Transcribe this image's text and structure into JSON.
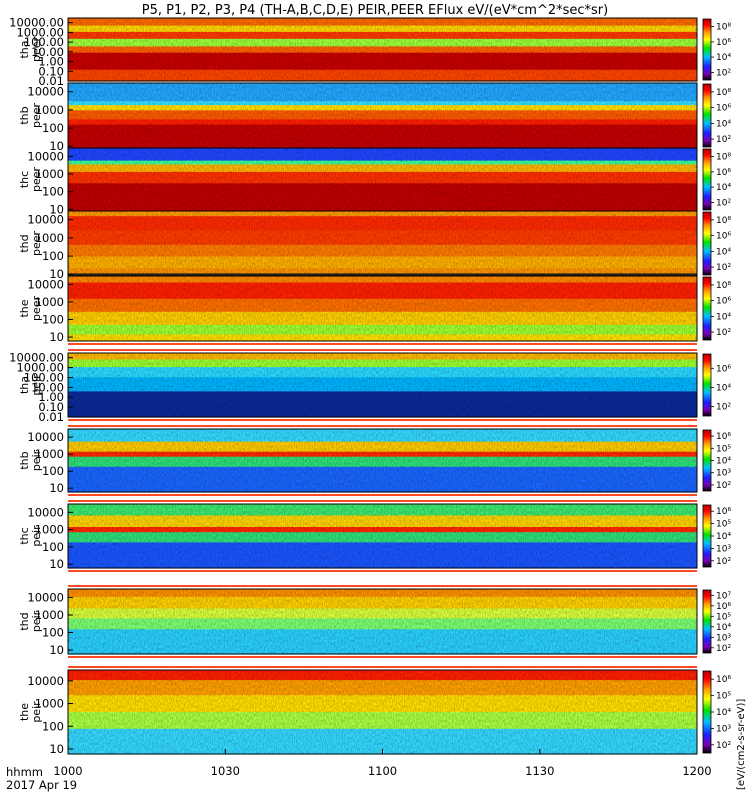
{
  "chart_data": {
    "type": "heatmap",
    "title": "P5, P1, P2, P3, P4 (TH-A,B,C,D,E) PEIR,PEER EFlux eV/(eV*cm^2*sec*sr)",
    "x_axis": {
      "range": [
        "10:00",
        "12:00"
      ],
      "ticks": [
        "1000",
        "1030",
        "1100",
        "1130",
        "1200"
      ],
      "label_line1": "hhmm",
      "label_line2": "2017 Apr 19"
    },
    "colorbar_label": "[eV/(cm2-s-sr-eV)]",
    "colormap": [
      "#000000",
      "#7a00b0",
      "#1f1fff",
      "#00bfff",
      "#00e000",
      "#ffff00",
      "#ff9900",
      "#ff0000",
      "#b00000"
    ],
    "panels": [
      {
        "probe": "tha",
        "species": "peer",
        "yticks": [
          "10000.00",
          "1000.00",
          "100.00",
          "10.00",
          "1.00",
          "0.10",
          "0.01"
        ],
        "ylim": [
          0.01,
          30000
        ],
        "cbar_ticks": [
          "10^8",
          "10^6",
          "10^4",
          "10^2"
        ],
        "cbar_range": [
          1,
          9
        ]
      },
      {
        "probe": "thb",
        "species": "peer",
        "yticks": [
          "10000",
          "1000",
          "100",
          "10"
        ],
        "ylim": [
          8,
          30000
        ],
        "cbar_ticks": [
          "10^8",
          "10^6",
          "10^4",
          "10^2"
        ],
        "cbar_range": [
          1,
          9
        ]
      },
      {
        "probe": "thc",
        "species": "peer",
        "yticks": [
          "10000",
          "1000",
          "100",
          "10"
        ],
        "ylim": [
          8,
          30000
        ],
        "cbar_ticks": [
          "10^8",
          "10^6",
          "10^4",
          "10^2"
        ],
        "cbar_range": [
          1,
          9
        ]
      },
      {
        "probe": "thd",
        "species": "peer",
        "yticks": [
          "10000",
          "1000",
          "100",
          "10"
        ],
        "ylim": [
          8,
          30000
        ],
        "cbar_ticks": [
          "10^8",
          "10^6",
          "10^4",
          "10^2"
        ],
        "cbar_range": [
          1,
          9
        ]
      },
      {
        "probe": "the",
        "species": "peer",
        "yticks": [
          "10000",
          "1000",
          "100",
          "10"
        ],
        "ylim": [
          6,
          30000
        ],
        "cbar_ticks": [
          "10^8",
          "10^6",
          "10^4",
          "10^2"
        ],
        "cbar_range": [
          1,
          9
        ]
      },
      {
        "probe": "tha",
        "species": "peir",
        "yticks": [
          "10000.00",
          "1000.00",
          "100.00",
          "10.00",
          "1.00",
          "0.10",
          "0.01"
        ],
        "ylim": [
          0.01,
          30000
        ],
        "cbar_ticks": [
          "10^6",
          "10^4",
          "10^2"
        ],
        "cbar_range": [
          1,
          7.5
        ]
      },
      {
        "probe": "thb",
        "species": "peir",
        "yticks": [
          "10000",
          "1000",
          "100",
          "10"
        ],
        "ylim": [
          6,
          30000
        ],
        "cbar_ticks": [
          "10^6",
          "10^5",
          "10^4",
          "10^3",
          "10^2"
        ],
        "cbar_range": [
          1.5,
          6.5
        ]
      },
      {
        "probe": "thc",
        "species": "peir",
        "yticks": [
          "10000",
          "1000",
          "100",
          "10"
        ],
        "ylim": [
          6,
          30000
        ],
        "cbar_ticks": [
          "10^6",
          "10^5",
          "10^4",
          "10^3",
          "10^2"
        ],
        "cbar_range": [
          1.5,
          6.5
        ]
      },
      {
        "probe": "thd",
        "species": "peir",
        "yticks": [
          "10000",
          "1000",
          "100",
          "10"
        ],
        "ylim": [
          6,
          30000
        ],
        "cbar_ticks": [
          "10^7",
          "10^6",
          "10^5",
          "10^4",
          "10^3",
          "10^2"
        ],
        "cbar_range": [
          1.5,
          7.5
        ]
      },
      {
        "probe": "the",
        "species": "peir",
        "yticks": [
          "10000",
          "1000",
          "100",
          "10"
        ],
        "ylim": [
          6,
          30000
        ],
        "cbar_ticks": [
          "10^6",
          "10^5",
          "10^4",
          "10^3",
          "10^2"
        ],
        "cbar_range": [
          1.5,
          6.5
        ]
      }
    ]
  }
}
